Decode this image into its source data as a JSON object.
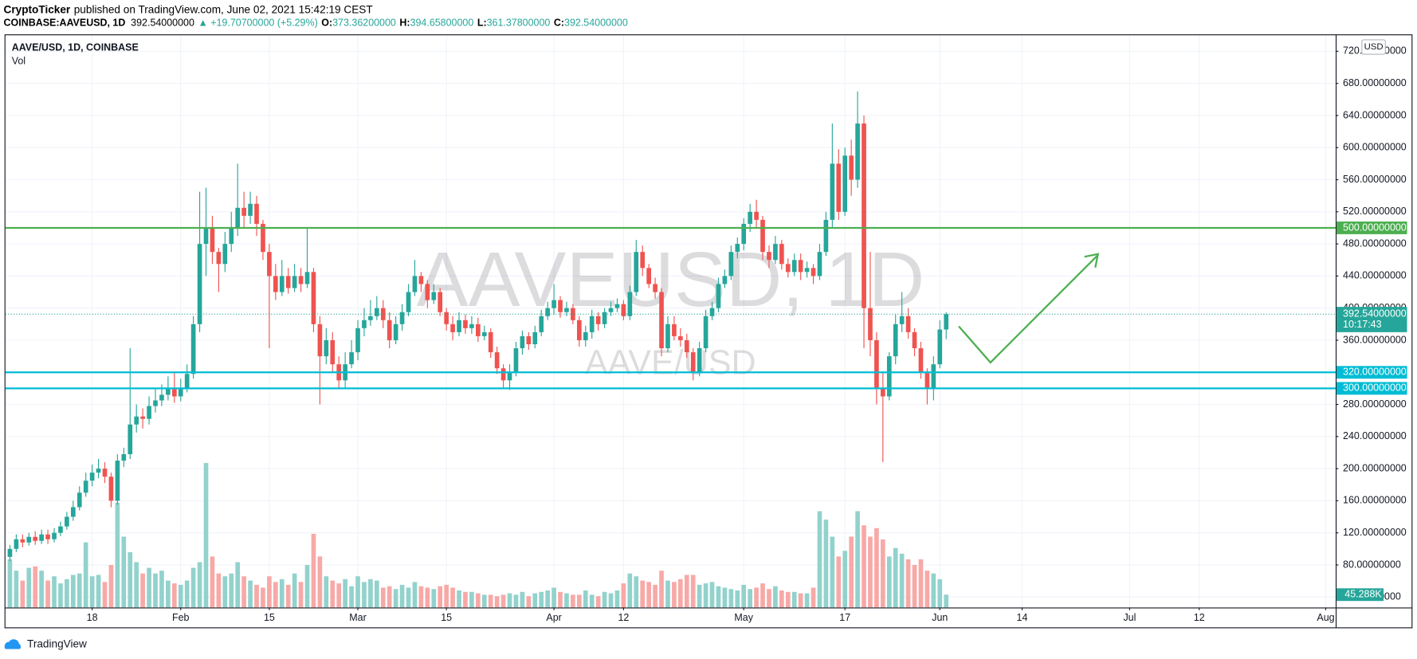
{
  "header": {
    "author": "CryptoTicker",
    "published": "published on TradingView.com, June 02, 2021 15:42:19 CEST",
    "symbol": "COINBASE:AAVEUSD, 1D",
    "price": "392.54000000",
    "change": "▲ +19.70700000 (+5.29%)",
    "ohlc": [
      {
        "label": "O:",
        "value": "373.36200000"
      },
      {
        "label": "H:",
        "value": "394.65800000"
      },
      {
        "label": "L:",
        "value": "361.37800000"
      },
      {
        "label": "C:",
        "value": "392.54000000"
      }
    ]
  },
  "footer": {
    "brand": "TradingView"
  },
  "chart_data": {
    "type": "candlestick",
    "title": "AAVE/USD, 1D, COINBASE",
    "subtitle": "Vol",
    "watermark": "AAVEUSD, 1D",
    "watermark_sub": "AAVE/USD",
    "currency": "USD",
    "up_color": "#26a69a",
    "down_color": "#ef5350",
    "volume_up_color": "#92d2cc",
    "volume_down_color": "#f7a9a7",
    "grid": true,
    "x": [
      5,
      6,
      7,
      8,
      9,
      10,
      11,
      12,
      13,
      14,
      15,
      16,
      17,
      18,
      19,
      20,
      21,
      22,
      23,
      24,
      25,
      26,
      27,
      28,
      29,
      30,
      31,
      32,
      33,
      34,
      35,
      36,
      37,
      38,
      39,
      40,
      41,
      42,
      43,
      44,
      45,
      46,
      47,
      48,
      49,
      50,
      51,
      52,
      53,
      54,
      55,
      56,
      57,
      58,
      59,
      60,
      61,
      62,
      63,
      64,
      65,
      66,
      67,
      68,
      69,
      70,
      71,
      72,
      73,
      74,
      75,
      76,
      77,
      78,
      79,
      80,
      81,
      82,
      83,
      84,
      85,
      86,
      87,
      88,
      89,
      90,
      91,
      92,
      93,
      94,
      95,
      96,
      97,
      98,
      99,
      100,
      101,
      102,
      103,
      104,
      105,
      106,
      107,
      108,
      109,
      110,
      111,
      112,
      113,
      114,
      115,
      116,
      117,
      118,
      119,
      120,
      121,
      122,
      123,
      124,
      125,
      126,
      127,
      128,
      129,
      130,
      131,
      132,
      133,
      134,
      135,
      136,
      137,
      138,
      139,
      140,
      141,
      142,
      143,
      144,
      145,
      146,
      147,
      148,
      149,
      150,
      151,
      152,
      153
    ],
    "open": [
      90,
      100,
      112,
      108,
      115,
      110,
      118,
      112,
      120,
      128,
      140,
      152,
      170,
      185,
      195,
      200,
      190,
      160,
      210,
      218,
      255,
      265,
      262,
      278,
      285,
      292,
      300,
      290,
      300,
      318,
      380,
      480,
      500,
      470,
      455,
      480,
      500,
      525,
      515,
      530,
      505,
      470,
      440,
      420,
      440,
      425,
      440,
      430,
      445,
      380,
      340,
      360,
      330,
      310,
      330,
      345,
      375,
      385,
      390,
      400,
      385,
      360,
      380,
      395,
      420,
      440,
      430,
      410,
      420,
      395,
      380,
      370,
      385,
      375,
      380,
      365,
      370,
      345,
      325,
      310,
      320,
      350,
      365,
      355,
      370,
      390,
      400,
      410,
      395,
      400,
      385,
      360,
      370,
      390,
      380,
      395,
      400,
      405,
      390,
      420,
      470,
      450,
      430,
      420,
      350,
      380,
      365,
      360,
      345,
      320,
      350,
      390,
      400,
      430,
      440,
      470,
      480,
      505,
      520,
      510,
      470,
      460,
      480,
      455,
      445,
      460,
      445,
      450,
      440,
      470,
      510,
      580,
      520,
      590,
      560,
      630,
      400,
      360,
      300,
      290,
      340,
      380,
      390,
      370,
      350,
      320,
      300,
      330,
      373.362
    ],
    "high": [
      105,
      118,
      118,
      120,
      122,
      124,
      124,
      126,
      134,
      146,
      160,
      178,
      195,
      205,
      212,
      208,
      195,
      218,
      226,
      350,
      280,
      275,
      290,
      300,
      305,
      315,
      320,
      312,
      330,
      390,
      545,
      550,
      515,
      475,
      495,
      520,
      580,
      545,
      545,
      540,
      510,
      480,
      455,
      460,
      450,
      455,
      450,
      500,
      450,
      390,
      375,
      370,
      340,
      345,
      360,
      385,
      400,
      410,
      415,
      410,
      395,
      390,
      405,
      430,
      460,
      445,
      435,
      430,
      425,
      400,
      390,
      395,
      392,
      390,
      388,
      378,
      375,
      352,
      330,
      330,
      358,
      372,
      370,
      378,
      398,
      408,
      430,
      415,
      408,
      405,
      390,
      378,
      398,
      395,
      400,
      408,
      412,
      410,
      428,
      485,
      478,
      455,
      438,
      425,
      390,
      390,
      375,
      368,
      350,
      358,
      398,
      408,
      438,
      448,
      478,
      488,
      512,
      530,
      535,
      515,
      478,
      490,
      485,
      462,
      468,
      468,
      458,
      455,
      480,
      520,
      630,
      598,
      600,
      610,
      670,
      640,
      470,
      370,
      320,
      345,
      392,
      420,
      400,
      375,
      358,
      325,
      340,
      385,
      394.658
    ],
    "low": [
      85,
      96,
      102,
      104,
      105,
      106,
      106,
      108,
      116,
      124,
      135,
      148,
      165,
      178,
      188,
      182,
      152,
      155,
      202,
      212,
      245,
      250,
      255,
      270,
      278,
      285,
      282,
      284,
      295,
      312,
      370,
      440,
      455,
      420,
      445,
      470,
      490,
      500,
      505,
      490,
      460,
      350,
      410,
      415,
      418,
      420,
      420,
      425,
      370,
      280,
      330,
      320,
      300,
      300,
      325,
      335,
      365,
      378,
      385,
      375,
      350,
      355,
      372,
      390,
      415,
      420,
      400,
      405,
      390,
      372,
      360,
      365,
      368,
      368,
      358,
      360,
      338,
      318,
      300,
      298,
      315,
      342,
      348,
      350,
      365,
      385,
      392,
      388,
      390,
      380,
      352,
      352,
      362,
      372,
      375,
      390,
      395,
      385,
      385,
      415,
      440,
      425,
      412,
      340,
      345,
      360,
      352,
      338,
      310,
      315,
      345,
      385,
      395,
      425,
      435,
      462,
      472,
      495,
      500,
      460,
      450,
      455,
      448,
      438,
      440,
      435,
      438,
      430,
      435,
      465,
      500,
      510,
      515,
      540,
      550,
      350,
      340,
      280,
      208,
      285,
      330,
      370,
      362,
      340,
      312,
      280,
      285,
      325,
      361.378
    ],
    "close": [
      100,
      112,
      108,
      115,
      110,
      118,
      112,
      120,
      128,
      140,
      152,
      170,
      185,
      195,
      200,
      190,
      160,
      210,
      218,
      255,
      265,
      262,
      278,
      285,
      292,
      300,
      290,
      300,
      318,
      380,
      480,
      500,
      470,
      455,
      480,
      500,
      525,
      515,
      530,
      505,
      470,
      440,
      420,
      440,
      425,
      440,
      430,
      445,
      380,
      340,
      360,
      330,
      310,
      330,
      345,
      375,
      385,
      390,
      400,
      385,
      360,
      380,
      395,
      420,
      440,
      430,
      410,
      420,
      395,
      380,
      370,
      385,
      375,
      380,
      365,
      370,
      345,
      325,
      310,
      320,
      350,
      365,
      355,
      370,
      390,
      400,
      410,
      395,
      400,
      385,
      360,
      370,
      390,
      380,
      395,
      400,
      405,
      390,
      420,
      470,
      450,
      430,
      420,
      350,
      380,
      365,
      360,
      345,
      320,
      350,
      390,
      400,
      430,
      440,
      470,
      480,
      505,
      520,
      510,
      470,
      460,
      480,
      455,
      445,
      460,
      445,
      450,
      440,
      470,
      510,
      580,
      520,
      590,
      560,
      630,
      400,
      360,
      300,
      290,
      340,
      380,
      390,
      370,
      350,
      320,
      300,
      330,
      373.362,
      392.54
    ],
    "volume": [
      170,
      130,
      95,
      140,
      145,
      130,
      95,
      110,
      85,
      100,
      115,
      120,
      230,
      110,
      115,
      90,
      150,
      370,
      250,
      195,
      160,
      120,
      140,
      120,
      130,
      95,
      85,
      80,
      95,
      140,
      160,
      510,
      180,
      120,
      110,
      120,
      160,
      110,
      95,
      80,
      70,
      110,
      90,
      100,
      80,
      120,
      90,
      150,
      260,
      180,
      110,
      95,
      85,
      100,
      75,
      110,
      90,
      100,
      95,
      70,
      75,
      65,
      80,
      70,
      90,
      75,
      70,
      65,
      75,
      80,
      70,
      60,
      55,
      55,
      50,
      45,
      45,
      40,
      45,
      50,
      45,
      55,
      40,
      50,
      55,
      60,
      70,
      55,
      50,
      45,
      45,
      60,
      45,
      40,
      55,
      50,
      60,
      85,
      120,
      110,
      95,
      90,
      80,
      130,
      95,
      90,
      100,
      115,
      115,
      80,
      85,
      90,
      75,
      70,
      65,
      60,
      80,
      65,
      70,
      85,
      65,
      75,
      60,
      55,
      55,
      50,
      50,
      70,
      340,
      310,
      250,
      180,
      200,
      250,
      340,
      290,
      250,
      280,
      240,
      180,
      210,
      190,
      170,
      150,
      170,
      130,
      120,
      100,
      45.288
    ],
    "volume_last_label": "45.288K",
    "volume_ylim": [
      0,
      2020
    ],
    "xlim": [
      4.29,
      214.57
    ],
    "xticks": [
      {
        "value": 18,
        "label": "18"
      },
      {
        "value": 32,
        "label": "Feb"
      },
      {
        "value": 46,
        "label": "15"
      },
      {
        "value": 60,
        "label": "Mar"
      },
      {
        "value": 74,
        "label": "15"
      },
      {
        "value": 91,
        "label": "Apr"
      },
      {
        "value": 102,
        "label": "12"
      },
      {
        "value": 121,
        "label": "May"
      },
      {
        "value": 137,
        "label": "17"
      },
      {
        "value": 152,
        "label": "Jun"
      },
      {
        "value": 165,
        "label": "14"
      },
      {
        "value": 182,
        "label": "Jul"
      },
      {
        "value": 193,
        "label": "12"
      },
      {
        "value": 213,
        "label": "Aug"
      }
    ],
    "ylim": [
      27,
      740
    ],
    "yticks": [
      {
        "value": 40,
        "label": "40.00000000"
      },
      {
        "value": 80,
        "label": "80.00000000"
      },
      {
        "value": 120,
        "label": "120.00000000"
      },
      {
        "value": 160,
        "label": "160.00000000"
      },
      {
        "value": 200,
        "label": "200.00000000"
      },
      {
        "value": 240,
        "label": "240.00000000"
      },
      {
        "value": 280,
        "label": "280.00000000"
      },
      {
        "value": 320,
        "label": "320.00000000"
      },
      {
        "value": 360,
        "label": "360.00000000"
      },
      {
        "value": 400,
        "label": "400.00000000"
      },
      {
        "value": 440,
        "label": "440.00000000"
      },
      {
        "value": 480,
        "label": "480.00000000"
      },
      {
        "value": 520,
        "label": "520.00000000"
      },
      {
        "value": 560,
        "label": "560.00000000"
      },
      {
        "value": 600,
        "label": "600.00000000"
      },
      {
        "value": 640,
        "label": "640.00000000"
      },
      {
        "value": 680,
        "label": "680.00000000"
      },
      {
        "value": 720,
        "label": "720.00000000"
      }
    ],
    "levels": [
      {
        "value": 500,
        "label": "500.00000000",
        "color": "#4caf50"
      },
      {
        "value": 320,
        "label": "320.00000000",
        "color": "#00bcd4"
      },
      {
        "value": 300,
        "label": "300.00000000",
        "color": "#00bcd4"
      }
    ],
    "last_price": {
      "value": 392.54,
      "label": "392.54000000",
      "countdown": "10:17:43",
      "color": "#26a69a"
    }
  }
}
